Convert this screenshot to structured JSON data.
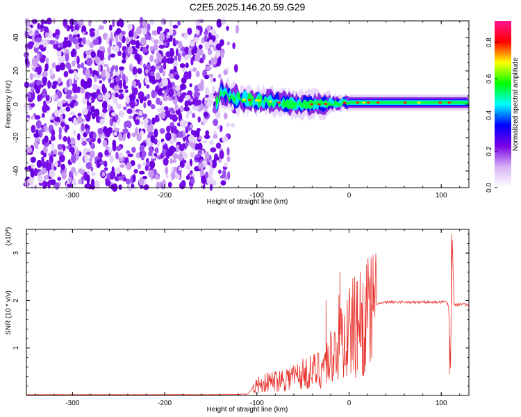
{
  "title": "C2E5.2025.146.20.59.G29",
  "chart_data": [
    {
      "type": "heatmap",
      "xlabel": "Height of straight line (km)",
      "ylabel": "Frequency (Hz)",
      "xlim": [
        -350,
        130
      ],
      "ylim": [
        -50,
        50
      ],
      "xticks": [
        -300,
        -200,
        -100,
        0,
        100
      ],
      "yticks": [
        -40,
        -20,
        0,
        20,
        40
      ],
      "colorbar": {
        "label": "Normalized spectral amplitude",
        "range": [
          0.0,
          0.92
        ],
        "ticks": [
          0.0,
          0.2,
          0.4,
          0.6,
          0.8
        ],
        "colormap": [
          "#ffffff",
          "#d6b3f5",
          "#7a00e6",
          "#0000ff",
          "#00ffff",
          "#00ff00",
          "#ffff00",
          "#ff0000",
          "#ff1493"
        ]
      },
      "description_regions": {
        "noise_region_x": [
          -350,
          -130
        ],
        "signal_band_center_freq": [
          [
            -140,
            8
          ],
          [
            -120,
            3
          ],
          [
            -90,
            2
          ],
          [
            -60,
            0
          ],
          [
            -30,
            0
          ],
          [
            0,
            1
          ],
          [
            50,
            1
          ],
          [
            100,
            1
          ],
          [
            130,
            1
          ]
        ]
      }
    },
    {
      "type": "line",
      "xlabel": "Height of straight line (km)",
      "ylabel": "SNR (10 * v/v)",
      "yscale_label": "(x10^4)",
      "xlim": [
        -350,
        130
      ],
      "ylim": [
        0,
        3.5
      ],
      "xticks": [
        -300,
        -200,
        -100,
        0,
        100
      ],
      "yticks": [
        1,
        2,
        3
      ],
      "series": [
        {
          "color": "#e8302a",
          "x": [
            -350,
            -250,
            -150,
            -110,
            -100,
            -90,
            -80,
            -70,
            -60,
            -50,
            -40,
            -30,
            -20,
            -15,
            -10,
            -5,
            0,
            5,
            10,
            20,
            30,
            40,
            50,
            60,
            70,
            80,
            90,
            100,
            105,
            108,
            110,
            112,
            114,
            118,
            125,
            130
          ],
          "y": [
            0.01,
            0.01,
            0.01,
            0.02,
            0.25,
            0.3,
            0.35,
            0.4,
            0.45,
            0.5,
            0.55,
            0.65,
            0.9,
            1.1,
            1.4,
            1.3,
            1.5,
            1.6,
            1.7,
            1.85,
            1.93,
            1.96,
            1.97,
            1.97,
            1.96,
            1.97,
            1.97,
            1.97,
            1.98,
            1.9,
            0.6,
            3.3,
            1.9,
            1.92,
            1.93,
            1.88
          ]
        }
      ],
      "spikes": [
        {
          "x": -10,
          "y": 2.6
        },
        {
          "x": -25,
          "y": 2.0
        },
        {
          "x": 9,
          "y": 2.4
        },
        {
          "x": 111,
          "y": 3.4
        },
        {
          "x": 109,
          "y": 0.45
        }
      ]
    }
  ]
}
